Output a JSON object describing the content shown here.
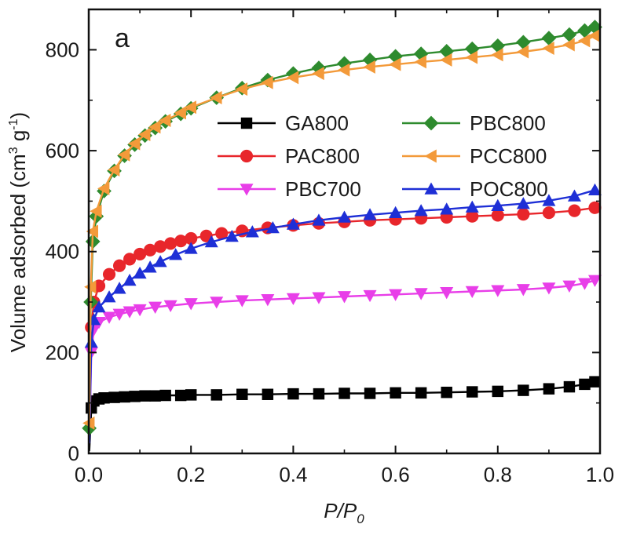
{
  "chart_data": {
    "type": "line",
    "panel_label": "a",
    "xlabel_main": "P/P",
    "xlabel_sub": "0",
    "ylabel_main": "Volume adsorbed (cm",
    "ylabel_sup1": "3",
    "ylabel_mid": " g",
    "ylabel_sup2": "-1",
    "ylabel_end": ")",
    "xlim": [
      0.0,
      1.0
    ],
    "ylim": [
      0,
      880
    ],
    "xticks": [
      0.0,
      0.2,
      0.4,
      0.6,
      0.8,
      1.0
    ],
    "xtick_labels": [
      "0.0",
      "0.2",
      "0.4",
      "0.6",
      "0.8",
      "1.0"
    ],
    "yticks": [
      0,
      200,
      400,
      600,
      800
    ],
    "ytick_labels": [
      "0",
      "200",
      "400",
      "600",
      "800"
    ],
    "legend_position": "upper-middle",
    "series": [
      {
        "name": "GA800",
        "color": "#000000",
        "marker": "square",
        "x": [
          0.001,
          0.005,
          0.01,
          0.02,
          0.03,
          0.05,
          0.07,
          0.09,
          0.11,
          0.13,
          0.15,
          0.18,
          0.2,
          0.25,
          0.3,
          0.35,
          0.4,
          0.45,
          0.5,
          0.55,
          0.6,
          0.65,
          0.7,
          0.75,
          0.8,
          0.85,
          0.9,
          0.94,
          0.97,
          0.99
        ],
        "y": [
          5,
          90,
          104,
          108,
          110,
          111,
          112,
          113,
          114,
          114,
          115,
          115,
          116,
          116,
          117,
          117,
          118,
          118,
          119,
          119,
          120,
          120,
          121,
          122,
          123,
          125,
          128,
          132,
          137,
          142
        ]
      },
      {
        "name": "PAC800",
        "color": "#e8262b",
        "marker": "circle",
        "x": [
          0.001,
          0.005,
          0.01,
          0.02,
          0.04,
          0.06,
          0.08,
          0.1,
          0.12,
          0.14,
          0.16,
          0.18,
          0.2,
          0.23,
          0.26,
          0.3,
          0.35,
          0.4,
          0.45,
          0.5,
          0.55,
          0.6,
          0.65,
          0.7,
          0.75,
          0.8,
          0.85,
          0.9,
          0.95,
          0.99
        ],
        "y": [
          30,
          250,
          300,
          332,
          355,
          372,
          385,
          395,
          403,
          410,
          416,
          421,
          426,
          431,
          436,
          441,
          447,
          452,
          456,
          459,
          462,
          464,
          466,
          468,
          470,
          472,
          474,
          477,
          481,
          487
        ]
      },
      {
        "name": "PBC700",
        "color": "#e83ee8",
        "marker": "triangle-down",
        "x": [
          0.001,
          0.005,
          0.01,
          0.02,
          0.04,
          0.06,
          0.08,
          0.1,
          0.13,
          0.16,
          0.2,
          0.25,
          0.3,
          0.35,
          0.4,
          0.45,
          0.5,
          0.55,
          0.6,
          0.65,
          0.7,
          0.75,
          0.8,
          0.85,
          0.9,
          0.94,
          0.97,
          0.99
        ],
        "y": [
          20,
          200,
          245,
          260,
          270,
          276,
          281,
          285,
          290,
          293,
          297,
          300,
          303,
          305,
          307,
          309,
          311,
          313,
          315,
          317,
          319,
          321,
          323,
          325,
          328,
          332,
          337,
          343
        ]
      },
      {
        "name": "POC800",
        "color": "#1e2fd6",
        "marker": "triangle-up",
        "x": [
          0.001,
          0.005,
          0.01,
          0.02,
          0.04,
          0.06,
          0.08,
          0.1,
          0.12,
          0.14,
          0.17,
          0.2,
          0.24,
          0.28,
          0.32,
          0.36,
          0.4,
          0.45,
          0.5,
          0.55,
          0.6,
          0.65,
          0.7,
          0.75,
          0.8,
          0.85,
          0.9,
          0.95,
          0.99
        ],
        "y": [
          20,
          220,
          265,
          290,
          310,
          327,
          343,
          357,
          369,
          380,
          394,
          406,
          419,
          430,
          439,
          447,
          454,
          462,
          468,
          473,
          477,
          481,
          484,
          488,
          491,
          495,
          501,
          510,
          522
        ]
      },
      {
        "name": "PBC800",
        "color": "#2e8b2e",
        "marker": "diamond",
        "x": [
          0.001,
          0.004,
          0.008,
          0.015,
          0.03,
          0.05,
          0.07,
          0.09,
          0.11,
          0.13,
          0.15,
          0.18,
          0.2,
          0.25,
          0.3,
          0.35,
          0.4,
          0.45,
          0.5,
          0.55,
          0.6,
          0.65,
          0.7,
          0.75,
          0.8,
          0.85,
          0.9,
          0.94,
          0.97,
          0.99
        ],
        "y": [
          50,
          300,
          420,
          470,
          520,
          560,
          590,
          612,
          630,
          645,
          658,
          673,
          684,
          705,
          724,
          740,
          753,
          764,
          773,
          780,
          787,
          792,
          797,
          802,
          808,
          815,
          823,
          830,
          838,
          845
        ]
      },
      {
        "name": "PCC800",
        "color": "#f39a3a",
        "marker": "triangle-left",
        "x": [
          0.001,
          0.004,
          0.008,
          0.015,
          0.03,
          0.05,
          0.07,
          0.09,
          0.11,
          0.13,
          0.15,
          0.18,
          0.2,
          0.25,
          0.3,
          0.35,
          0.4,
          0.45,
          0.5,
          0.55,
          0.6,
          0.65,
          0.7,
          0.75,
          0.8,
          0.85,
          0.9,
          0.94,
          0.97,
          0.99
        ],
        "y": [
          60,
          330,
          440,
          480,
          525,
          562,
          592,
          614,
          632,
          647,
          660,
          675,
          686,
          705,
          722,
          735,
          745,
          753,
          760,
          766,
          771,
          776,
          780,
          785,
          790,
          796,
          803,
          810,
          818,
          828
        ]
      }
    ],
    "legend_order": [
      "GA800",
      "PBC800",
      "PAC800",
      "PCC800",
      "PBC700",
      "POC800"
    ]
  }
}
